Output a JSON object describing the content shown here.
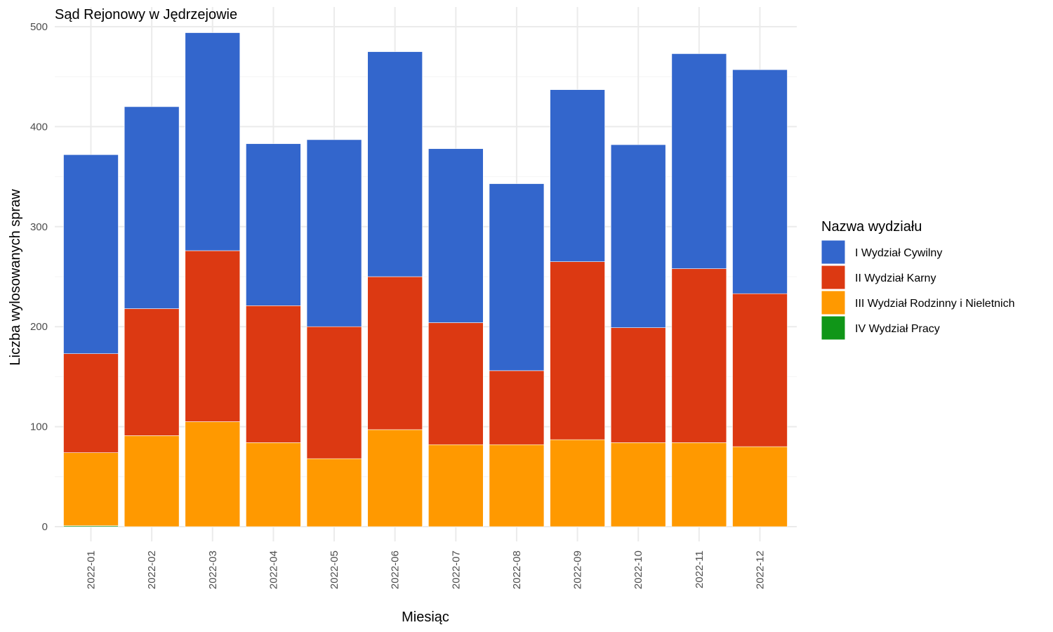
{
  "chart_data": {
    "type": "bar",
    "stacked": true,
    "title": "Sąd Rejonowy w Jędrzejowie",
    "xlabel": "Miesiąc",
    "ylabel": "Liczba wylosowanych spraw",
    "ylim": [
      0,
      500
    ],
    "yticks": [
      0,
      100,
      200,
      300,
      400,
      500
    ],
    "grid": true,
    "legend_title": "Nazwa wydziału",
    "legend_position": "right",
    "categories": [
      "2022-01",
      "2022-02",
      "2022-03",
      "2022-04",
      "2022-05",
      "2022-06",
      "2022-07",
      "2022-08",
      "2022-09",
      "2022-10",
      "2022-11",
      "2022-12"
    ],
    "series": [
      {
        "name": "I Wydział Cywilny",
        "color": "#3366cc",
        "values": [
          199,
          202,
          218,
          162,
          187,
          225,
          174,
          187,
          172,
          183,
          215,
          224
        ]
      },
      {
        "name": "II Wydział Karny",
        "color": "#dc3912",
        "values": [
          99,
          127,
          171,
          137,
          132,
          153,
          122,
          74,
          178,
          115,
          174,
          153
        ]
      },
      {
        "name": "III Wydział Rodzinny i Nieletnich",
        "color": "#ff9900",
        "values": [
          73,
          91,
          105,
          84,
          68,
          97,
          82,
          82,
          87,
          84,
          84,
          80
        ]
      },
      {
        "name": "IV Wydział Pracy",
        "color": "#109618",
        "values": [
          1,
          0,
          0,
          0,
          0,
          0,
          0,
          0,
          0,
          0,
          0,
          0
        ]
      }
    ]
  }
}
